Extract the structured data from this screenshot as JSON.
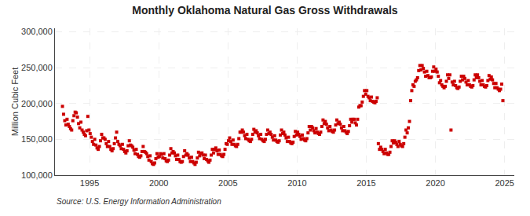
{
  "chart_data": {
    "type": "scatter",
    "title": "Monthly Oklahoma Natural Gas Gross Withdrawals",
    "ylabel": "Million Cubic Feet",
    "source": "Source: U.S. Energy Information Administration",
    "color": "#cc0000",
    "marker": "square",
    "grid": true,
    "xlim": [
      1992.5,
      2025.7
    ],
    "ylim": [
      100000,
      305000
    ],
    "xticks": [
      1995,
      2000,
      2005,
      2010,
      2015,
      2020,
      2025
    ],
    "yticks": [
      {
        "value": 100000,
        "label": "100,000"
      },
      {
        "value": 150000,
        "label": "150,000"
      },
      {
        "value": 200000,
        "label": "200,000"
      },
      {
        "value": 250000,
        "label": "250,000"
      },
      {
        "value": 300000,
        "label": "300,000"
      }
    ],
    "x": [
      1993.0417,
      1993.125,
      1993.2083,
      1993.2917,
      1993.375,
      1993.4583,
      1993.5417,
      1993.625,
      1993.7083,
      1993.7917,
      1993.875,
      1993.9583,
      1994.0417,
      1994.125,
      1994.2083,
      1994.2917,
      1994.375,
      1994.4583,
      1994.5417,
      1994.625,
      1994.7083,
      1994.7917,
      1994.875,
      1994.9583,
      1995.0417,
      1995.125,
      1995.2083,
      1995.2917,
      1995.375,
      1995.4583,
      1995.5417,
      1995.625,
      1995.7083,
      1995.7917,
      1995.875,
      1995.9583,
      1996.0417,
      1996.125,
      1996.2083,
      1996.2917,
      1996.375,
      1996.4583,
      1996.5417,
      1996.625,
      1996.7083,
      1996.7917,
      1996.875,
      1996.9583,
      1997.0417,
      1997.125,
      1997.2083,
      1997.2917,
      1997.375,
      1997.4583,
      1997.5417,
      1997.625,
      1997.7083,
      1997.7917,
      1997.875,
      1997.9583,
      1998.0417,
      1998.125,
      1998.2083,
      1998.2917,
      1998.375,
      1998.4583,
      1998.5417,
      1998.625,
      1998.7083,
      1998.7917,
      1998.875,
      1998.9583,
      1999.0417,
      1999.125,
      1999.2083,
      1999.2917,
      1999.375,
      1999.4583,
      1999.5417,
      1999.625,
      1999.7083,
      1999.7917,
      1999.875,
      1999.9583,
      2000.0417,
      2000.125,
      2000.2083,
      2000.2917,
      2000.375,
      2000.4583,
      2000.5417,
      2000.625,
      2000.7083,
      2000.7917,
      2000.875,
      2000.9583,
      2001.0417,
      2001.125,
      2001.2083,
      2001.2917,
      2001.375,
      2001.4583,
      2001.5417,
      2001.625,
      2001.7083,
      2001.7917,
      2001.875,
      2001.9583,
      2002.0417,
      2002.125,
      2002.2083,
      2002.2917,
      2002.375,
      2002.4583,
      2002.5417,
      2002.625,
      2002.7083,
      2002.7917,
      2002.875,
      2002.9583,
      2003.0417,
      2003.125,
      2003.2083,
      2003.2917,
      2003.375,
      2003.4583,
      2003.5417,
      2003.625,
      2003.7083,
      2003.7917,
      2003.875,
      2003.9583,
      2004.0417,
      2004.125,
      2004.2083,
      2004.2917,
      2004.375,
      2004.4583,
      2004.5417,
      2004.625,
      2004.7083,
      2004.7917,
      2004.875,
      2004.9583,
      2005.0417,
      2005.125,
      2005.2083,
      2005.2917,
      2005.375,
      2005.4583,
      2005.5417,
      2005.625,
      2005.7083,
      2005.7917,
      2005.875,
      2005.9583,
      2006.0417,
      2006.125,
      2006.2083,
      2006.2917,
      2006.375,
      2006.4583,
      2006.5417,
      2006.625,
      2006.7083,
      2006.7917,
      2006.875,
      2006.9583,
      2007.0417,
      2007.125,
      2007.2083,
      2007.2917,
      2007.375,
      2007.4583,
      2007.5417,
      2007.625,
      2007.7083,
      2007.7917,
      2007.875,
      2007.9583,
      2008.0417,
      2008.125,
      2008.2083,
      2008.2917,
      2008.375,
      2008.4583,
      2008.5417,
      2008.625,
      2008.7083,
      2008.7917,
      2008.875,
      2008.9583,
      2009.0417,
      2009.125,
      2009.2083,
      2009.2917,
      2009.375,
      2009.4583,
      2009.5417,
      2009.625,
      2009.7083,
      2009.7917,
      2009.875,
      2009.9583,
      2010.0417,
      2010.125,
      2010.2083,
      2010.2917,
      2010.375,
      2010.4583,
      2010.5417,
      2010.625,
      2010.7083,
      2010.7917,
      2010.875,
      2010.9583,
      2011.0417,
      2011.125,
      2011.2083,
      2011.2917,
      2011.375,
      2011.4583,
      2011.5417,
      2011.625,
      2011.7083,
      2011.7917,
      2011.875,
      2011.9583,
      2012.0417,
      2012.125,
      2012.2083,
      2012.2917,
      2012.375,
      2012.4583,
      2012.5417,
      2012.625,
      2012.7083,
      2012.7917,
      2012.875,
      2012.9583,
      2013.0417,
      2013.125,
      2013.2083,
      2013.2917,
      2013.375,
      2013.4583,
      2013.5417,
      2013.625,
      2013.7083,
      2013.7917,
      2013.875,
      2013.9583,
      2014.0417,
      2014.125,
      2014.2083,
      2014.2917,
      2014.375,
      2014.4583,
      2014.5417,
      2014.625,
      2014.7083,
      2014.7917,
      2014.875,
      2014.9583,
      2015.0417,
      2015.125,
      2015.2083,
      2015.2917,
      2015.375,
      2015.4583,
      2015.5417,
      2015.625,
      2015.7083,
      2015.7917,
      2015.875,
      2015.9583,
      2016.0417,
      2016.125,
      2016.2083,
      2016.2917,
      2016.375,
      2016.4583,
      2016.5417,
      2016.625,
      2016.7083,
      2016.7917,
      2016.875,
      2016.9583,
      2017.0417,
      2017.125,
      2017.2083,
      2017.2917,
      2017.375,
      2017.4583,
      2017.5417,
      2017.625,
      2017.7083,
      2017.7917,
      2017.875,
      2017.9583,
      2018.0417,
      2018.125,
      2018.2083,
      2018.2917,
      2018.375,
      2018.4583,
      2018.5417,
      2018.625,
      2018.7083,
      2018.7917,
      2018.875,
      2018.9583,
      2019.0417,
      2019.125,
      2019.2083,
      2019.2917,
      2019.375,
      2019.4583,
      2019.5417,
      2019.625,
      2019.7083,
      2019.7917,
      2019.875,
      2019.9583,
      2020.0417,
      2020.125,
      2020.2083,
      2020.2917,
      2020.375,
      2020.4583,
      2020.5417,
      2020.625,
      2020.7083,
      2020.7917,
      2020.875,
      2020.9583,
      2021.0417,
      2021.125,
      2021.2083,
      2021.2917,
      2021.375,
      2021.4583,
      2021.5417,
      2021.625,
      2021.7083,
      2021.7917,
      2021.875,
      2021.9583,
      2022.0417,
      2022.125,
      2022.2083,
      2022.2917,
      2022.375,
      2022.4583,
      2022.5417,
      2022.625,
      2022.7083,
      2022.7917,
      2022.875,
      2022.9583,
      2023.0417,
      2023.125,
      2023.2083,
      2023.2917,
      2023.375,
      2023.4583,
      2023.5417,
      2023.625,
      2023.7083,
      2023.7917,
      2023.875,
      2023.9583,
      2024.0417,
      2024.125,
      2024.2083,
      2024.2917,
      2024.375,
      2024.4583,
      2024.5417,
      2024.625,
      2024.7083,
      2024.7917,
      2024.875
    ],
    "values": [
      196000,
      185000,
      176000,
      170000,
      178000,
      171000,
      168000,
      165000,
      163000,
      176000,
      183000,
      188000,
      187000,
      181000,
      172000,
      166000,
      174000,
      163000,
      160000,
      157000,
      155000,
      162000,
      182000,
      163000,
      158000,
      153000,
      147000,
      143000,
      150000,
      142000,
      138000,
      136000,
      140000,
      148000,
      157000,
      152000,
      152000,
      150000,
      144000,
      140000,
      147000,
      140000,
      136000,
      134000,
      137000,
      144000,
      152000,
      160000,
      147000,
      143000,
      141000,
      137000,
      143000,
      136000,
      133000,
      131000,
      134000,
      141000,
      148000,
      142000,
      141000,
      139000,
      135000,
      130000,
      136000,
      129000,
      126000,
      125000,
      127000,
      133000,
      140000,
      133000,
      132000,
      130000,
      126000,
      121000,
      127000,
      119000,
      116000,
      115000,
      117000,
      123000,
      130000,
      125000,
      126000,
      130000,
      129000,
      124000,
      130000,
      123000,
      120000,
      119000,
      121000,
      128000,
      137000,
      131000,
      133000,
      131000,
      127000,
      122000,
      128000,
      122000,
      119000,
      118000,
      119000,
      126000,
      134000,
      128000,
      130000,
      128000,
      124000,
      119000,
      125000,
      119000,
      117000,
      115000,
      118000,
      124000,
      132000,
      127000,
      130000,
      131000,
      128000,
      123000,
      128000,
      122000,
      120000,
      118000,
      121000,
      128000,
      136000,
      131000,
      136000,
      138000,
      134000,
      129000,
      135000,
      129000,
      127000,
      126000,
      129000,
      136000,
      144000,
      143000,
      148000,
      152000,
      147000,
      143000,
      149000,
      143000,
      141000,
      140000,
      143000,
      151000,
      160000,
      160000,
      163000,
      160000,
      155000,
      151000,
      157000,
      150000,
      148000,
      147000,
      150000,
      157000,
      164000,
      160000,
      162000,
      159000,
      155000,
      151000,
      157000,
      150000,
      148000,
      147000,
      150000,
      157000,
      163000,
      158000,
      160000,
      157000,
      153000,
      149000,
      155000,
      149000,
      147000,
      146000,
      148000,
      156000,
      163000,
      158000,
      160000,
      156000,
      152000,
      147000,
      153000,
      147000,
      145000,
      144000,
      146000,
      154000,
      161000,
      156000,
      160000,
      157000,
      154000,
      150000,
      156000,
      151000,
      149000,
      148000,
      151000,
      159000,
      168000,
      163000,
      168000,
      166000,
      162000,
      159000,
      165000,
      160000,
      158000,
      157000,
      160000,
      168000,
      177000,
      172000,
      175000,
      171000,
      166000,
      162000,
      168000,
      163000,
      161000,
      160000,
      163000,
      170000,
      177000,
      172000,
      174000,
      171000,
      166000,
      162000,
      168000,
      162000,
      160000,
      158000,
      161000,
      169000,
      178000,
      174000,
      178000,
      178000,
      173000,
      170000,
      178000,
      195000,
      197000,
      197000,
      202000,
      210000,
      218000,
      213000,
      218000,
      210000,
      208000,
      204000,
      209000,
      203000,
      202000,
      201000,
      203000,
      208000,
      144000,
      136000,
      139000,
      136000,
      133000,
      130000,
      136000,
      131000,
      129000,
      129000,
      132000,
      140000,
      148000,
      145000,
      148000,
      146000,
      143000,
      140000,
      147000,
      143000,
      141000,
      140000,
      144000,
      153000,
      163000,
      159000,
      166000,
      175000,
      204000,
      218000,
      226000,
      224000,
      231000,
      233000,
      236000,
      246000,
      253000,
      247000,
      253000,
      249000,
      244000,
      238000,
      245000,
      239000,
      236000,
      236000,
      237000,
      245000,
      251000,
      245000,
      248000,
      244000,
      238000,
      229000,
      232000,
      226000,
      224000,
      222000,
      224000,
      231000,
      240000,
      235000,
      240000,
      163000,
      230000,
      226000,
      231000,
      225000,
      222000,
      221000,
      223000,
      231000,
      238000,
      233000,
      238000,
      235000,
      230000,
      226000,
      232000,
      226000,
      224000,
      223000,
      225000,
      233000,
      240000,
      236000,
      240000,
      236000,
      231000,
      226000,
      232000,
      226000,
      224000,
      223000,
      225000,
      232000,
      239000,
      234000,
      237000,
      233000,
      228000,
      222000,
      228000,
      222000,
      220000,
      218000,
      220000,
      227000,
      204000
    ]
  }
}
